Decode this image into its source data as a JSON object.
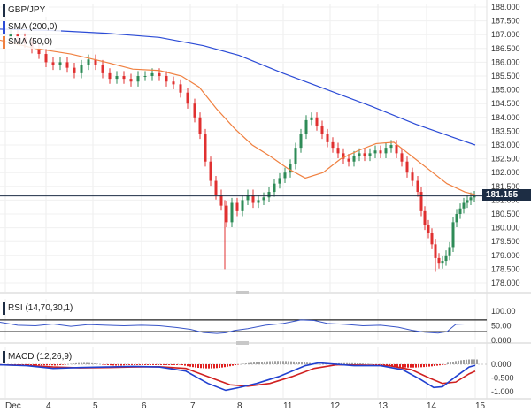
{
  "labels": {
    "symbol": "GBP/JPY",
    "sma200": "SMA (200,0)",
    "sma50": "SMA (50,0)",
    "rsi": "RSI (14,70,30,1)",
    "macd": "MACD (12,26,9)"
  },
  "colors": {
    "bull": "#2e8b57",
    "bear": "#e03030",
    "sma200": "#2b4bd6",
    "sma50": "#f08040",
    "rsi": "#3a56c8",
    "macd_line": "#2040d0",
    "signal_line": "#d02020",
    "hist_pos": "#a0a0a0",
    "hist_neg": "#e02020",
    "tag_bg": "#1d2d44"
  },
  "price_axis": {
    "ticks": [
      "188.000",
      "187.500",
      "187.000",
      "186.500",
      "186.000",
      "185.500",
      "185.000",
      "184.500",
      "184.000",
      "183.500",
      "183.000",
      "182.500",
      "182.000",
      "181.500",
      "181.000",
      "180.500",
      "180.000",
      "179.500",
      "179.000",
      "178.500",
      "178.000"
    ],
    "last_price": "181.155"
  },
  "rsi_axis": {
    "ticks": [
      "100.00",
      "50.00",
      "0.000"
    ]
  },
  "macd_axis": {
    "ticks": [
      "0.000",
      "-0.500",
      "-1.000"
    ]
  },
  "x_axis": {
    "ticks": [
      "Dec",
      "4",
      "5",
      "6",
      "7",
      "8",
      "11",
      "12",
      "13",
      "14",
      "15"
    ]
  },
  "chart_data": [
    {
      "type": "candlestick",
      "title": "GBP/JPY",
      "ylim": [
        177.8,
        188.2
      ],
      "x": [
        "Dec",
        "4",
        "5",
        "6",
        "7",
        "8",
        "11",
        "12",
        "13",
        "14",
        "15"
      ],
      "series": [
        {
          "name": "SMA (200,0)",
          "values": [
            187.2,
            187.15,
            187.05,
            186.9,
            186.6,
            186.2,
            185.55,
            184.95,
            184.35,
            183.6,
            183.0
          ]
        },
        {
          "name": "SMA (50,0)",
          "values": [
            186.5,
            186.3,
            186.1,
            185.7,
            185.1,
            182.9,
            181.9,
            182.7,
            183.0,
            181.8,
            181.2
          ]
        },
        {
          "name": "close",
          "values": [
            186.6,
            185.8,
            185.9,
            185.5,
            184.2,
            180.6,
            183.8,
            182.6,
            182.9,
            178.8,
            181.155
          ]
        }
      ]
    },
    {
      "type": "line",
      "title": "RSI (14,70,30,1)",
      "ylim": [
        0,
        100
      ],
      "levels": [
        70,
        30
      ],
      "series": [
        {
          "name": "RSI (14,70,30,1)",
          "values": [
            55,
            48,
            52,
            50,
            40,
            20,
            62,
            48,
            50,
            25,
            55
          ]
        }
      ]
    },
    {
      "type": "bar",
      "title": "MACD (12,26,9)",
      "ylim": [
        -1.1,
        0.2
      ],
      "series": [
        {
          "name": "macd",
          "values": [
            -0.05,
            -0.25,
            -0.2,
            -0.1,
            -0.2,
            -0.95,
            -0.5,
            -0.15,
            -0.05,
            -0.95,
            -0.05
          ]
        },
        {
          "name": "signal",
          "values": [
            -0.05,
            -0.2,
            -0.2,
            -0.12,
            -0.15,
            -0.75,
            -0.65,
            -0.2,
            -0.05,
            -0.85,
            -0.25
          ]
        }
      ]
    }
  ]
}
